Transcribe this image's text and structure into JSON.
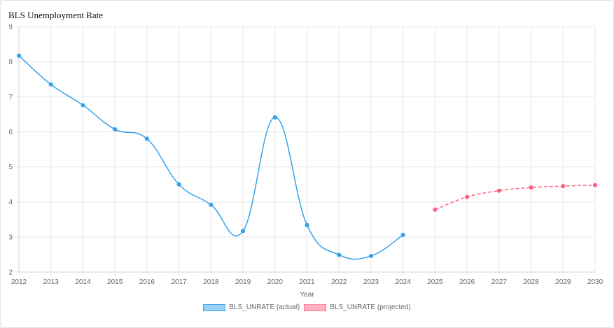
{
  "title": "BLS Unemployment Rate",
  "chart_data": {
    "type": "line",
    "title": "BLS Unemployment Rate",
    "xlabel": "Year",
    "ylabel": "",
    "categories": [
      "2012",
      "2013",
      "2014",
      "2015",
      "2016",
      "2017",
      "2018",
      "2019",
      "2020",
      "2021",
      "2022",
      "2023",
      "2024",
      "2025",
      "2026",
      "2027",
      "2028",
      "2029",
      "2030"
    ],
    "ylim": [
      2,
      9
    ],
    "yticks": [
      2,
      3,
      4,
      5,
      6,
      7,
      8,
      9
    ],
    "grid": true,
    "legend": "bottom",
    "series": [
      {
        "name": "BLS_UNRATE (actual)",
        "color": "#36a2eb",
        "style": "solid",
        "values": [
          8.17,
          7.35,
          6.76,
          6.07,
          5.8,
          4.5,
          3.92,
          3.17,
          6.41,
          3.34,
          2.49,
          2.46,
          3.06,
          null,
          null,
          null,
          null,
          null,
          null
        ]
      },
      {
        "name": "BLS_UNRATE (projected)",
        "color": "#ff6384",
        "style": "dashed",
        "values": [
          null,
          null,
          null,
          null,
          null,
          null,
          null,
          null,
          null,
          null,
          null,
          null,
          null,
          3.78,
          4.14,
          4.32,
          4.41,
          4.45,
          4.48
        ]
      }
    ]
  }
}
